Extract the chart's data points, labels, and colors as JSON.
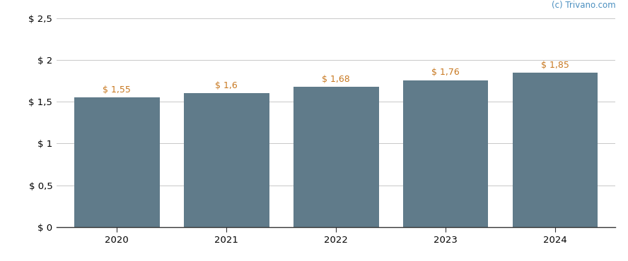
{
  "categories": [
    2020,
    2021,
    2022,
    2023,
    2024
  ],
  "values": [
    1.55,
    1.6,
    1.68,
    1.76,
    1.85
  ],
  "bar_color": "#607b8a",
  "bar_width": 0.78,
  "ylim": [
    0,
    2.5
  ],
  "yticks": [
    0,
    0.5,
    1.0,
    1.5,
    2.0,
    2.5
  ],
  "ytick_labels": [
    "$ 0",
    "$ 0,5",
    "$ 1",
    "$ 1,5",
    "$ 2",
    "$ 2,5"
  ],
  "value_labels": [
    "$ 1,55",
    "$ 1,6",
    "$ 1,68",
    "$ 1,76",
    "$ 1,85"
  ],
  "label_color": "#c87820",
  "watermark": "(c) Trivano.com",
  "watermark_color": "#4a8fc0",
  "background_color": "#ffffff",
  "grid_color": "#c8c8c8",
  "spine_color": "#333333",
  "label_fontsize": 9.0,
  "tick_fontsize": 9.5,
  "watermark_fontsize": 8.5
}
